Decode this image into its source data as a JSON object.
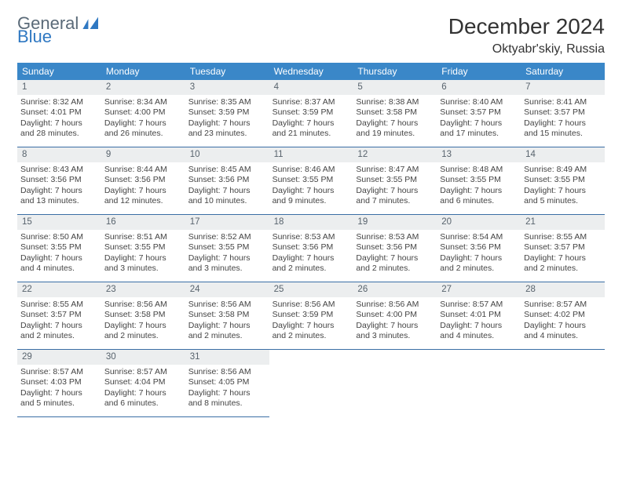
{
  "brand": {
    "word1": "General",
    "word2": "Blue",
    "color1": "#5a6a78",
    "color2": "#2f78c2"
  },
  "title": "December 2024",
  "subtitle": "Oktyabr'skiy, Russia",
  "header_bg": "#3a87c8",
  "header_text_color": "#ffffff",
  "daynum_bg": "#eceeef",
  "daynum_color": "#58636d",
  "cell_border_color": "#3a6ea5",
  "body_text_color": "#444444",
  "body_fontsize": 10.5,
  "columns": [
    "Sunday",
    "Monday",
    "Tuesday",
    "Wednesday",
    "Thursday",
    "Friday",
    "Saturday"
  ],
  "weeks": [
    [
      {
        "n": "1",
        "sr": "8:32 AM",
        "ss": "4:01 PM",
        "dl": "7 hours and 28 minutes."
      },
      {
        "n": "2",
        "sr": "8:34 AM",
        "ss": "4:00 PM",
        "dl": "7 hours and 26 minutes."
      },
      {
        "n": "3",
        "sr": "8:35 AM",
        "ss": "3:59 PM",
        "dl": "7 hours and 23 minutes."
      },
      {
        "n": "4",
        "sr": "8:37 AM",
        "ss": "3:59 PM",
        "dl": "7 hours and 21 minutes."
      },
      {
        "n": "5",
        "sr": "8:38 AM",
        "ss": "3:58 PM",
        "dl": "7 hours and 19 minutes."
      },
      {
        "n": "6",
        "sr": "8:40 AM",
        "ss": "3:57 PM",
        "dl": "7 hours and 17 minutes."
      },
      {
        "n": "7",
        "sr": "8:41 AM",
        "ss": "3:57 PM",
        "dl": "7 hours and 15 minutes."
      }
    ],
    [
      {
        "n": "8",
        "sr": "8:43 AM",
        "ss": "3:56 PM",
        "dl": "7 hours and 13 minutes."
      },
      {
        "n": "9",
        "sr": "8:44 AM",
        "ss": "3:56 PM",
        "dl": "7 hours and 12 minutes."
      },
      {
        "n": "10",
        "sr": "8:45 AM",
        "ss": "3:56 PM",
        "dl": "7 hours and 10 minutes."
      },
      {
        "n": "11",
        "sr": "8:46 AM",
        "ss": "3:55 PM",
        "dl": "7 hours and 9 minutes."
      },
      {
        "n": "12",
        "sr": "8:47 AM",
        "ss": "3:55 PM",
        "dl": "7 hours and 7 minutes."
      },
      {
        "n": "13",
        "sr": "8:48 AM",
        "ss": "3:55 PM",
        "dl": "7 hours and 6 minutes."
      },
      {
        "n": "14",
        "sr": "8:49 AM",
        "ss": "3:55 PM",
        "dl": "7 hours and 5 minutes."
      }
    ],
    [
      {
        "n": "15",
        "sr": "8:50 AM",
        "ss": "3:55 PM",
        "dl": "7 hours and 4 minutes."
      },
      {
        "n": "16",
        "sr": "8:51 AM",
        "ss": "3:55 PM",
        "dl": "7 hours and 3 minutes."
      },
      {
        "n": "17",
        "sr": "8:52 AM",
        "ss": "3:55 PM",
        "dl": "7 hours and 3 minutes."
      },
      {
        "n": "18",
        "sr": "8:53 AM",
        "ss": "3:56 PM",
        "dl": "7 hours and 2 minutes."
      },
      {
        "n": "19",
        "sr": "8:53 AM",
        "ss": "3:56 PM",
        "dl": "7 hours and 2 minutes."
      },
      {
        "n": "20",
        "sr": "8:54 AM",
        "ss": "3:56 PM",
        "dl": "7 hours and 2 minutes."
      },
      {
        "n": "21",
        "sr": "8:55 AM",
        "ss": "3:57 PM",
        "dl": "7 hours and 2 minutes."
      }
    ],
    [
      {
        "n": "22",
        "sr": "8:55 AM",
        "ss": "3:57 PM",
        "dl": "7 hours and 2 minutes."
      },
      {
        "n": "23",
        "sr": "8:56 AM",
        "ss": "3:58 PM",
        "dl": "7 hours and 2 minutes."
      },
      {
        "n": "24",
        "sr": "8:56 AM",
        "ss": "3:58 PM",
        "dl": "7 hours and 2 minutes."
      },
      {
        "n": "25",
        "sr": "8:56 AM",
        "ss": "3:59 PM",
        "dl": "7 hours and 2 minutes."
      },
      {
        "n": "26",
        "sr": "8:56 AM",
        "ss": "4:00 PM",
        "dl": "7 hours and 3 minutes."
      },
      {
        "n": "27",
        "sr": "8:57 AM",
        "ss": "4:01 PM",
        "dl": "7 hours and 4 minutes."
      },
      {
        "n": "28",
        "sr": "8:57 AM",
        "ss": "4:02 PM",
        "dl": "7 hours and 4 minutes."
      }
    ],
    [
      {
        "n": "29",
        "sr": "8:57 AM",
        "ss": "4:03 PM",
        "dl": "7 hours and 5 minutes."
      },
      {
        "n": "30",
        "sr": "8:57 AM",
        "ss": "4:04 PM",
        "dl": "7 hours and 6 minutes."
      },
      {
        "n": "31",
        "sr": "8:56 AM",
        "ss": "4:05 PM",
        "dl": "7 hours and 8 minutes."
      },
      null,
      null,
      null,
      null
    ]
  ],
  "labels": {
    "sunrise": "Sunrise:",
    "sunset": "Sunset:",
    "daylight": "Daylight:"
  }
}
